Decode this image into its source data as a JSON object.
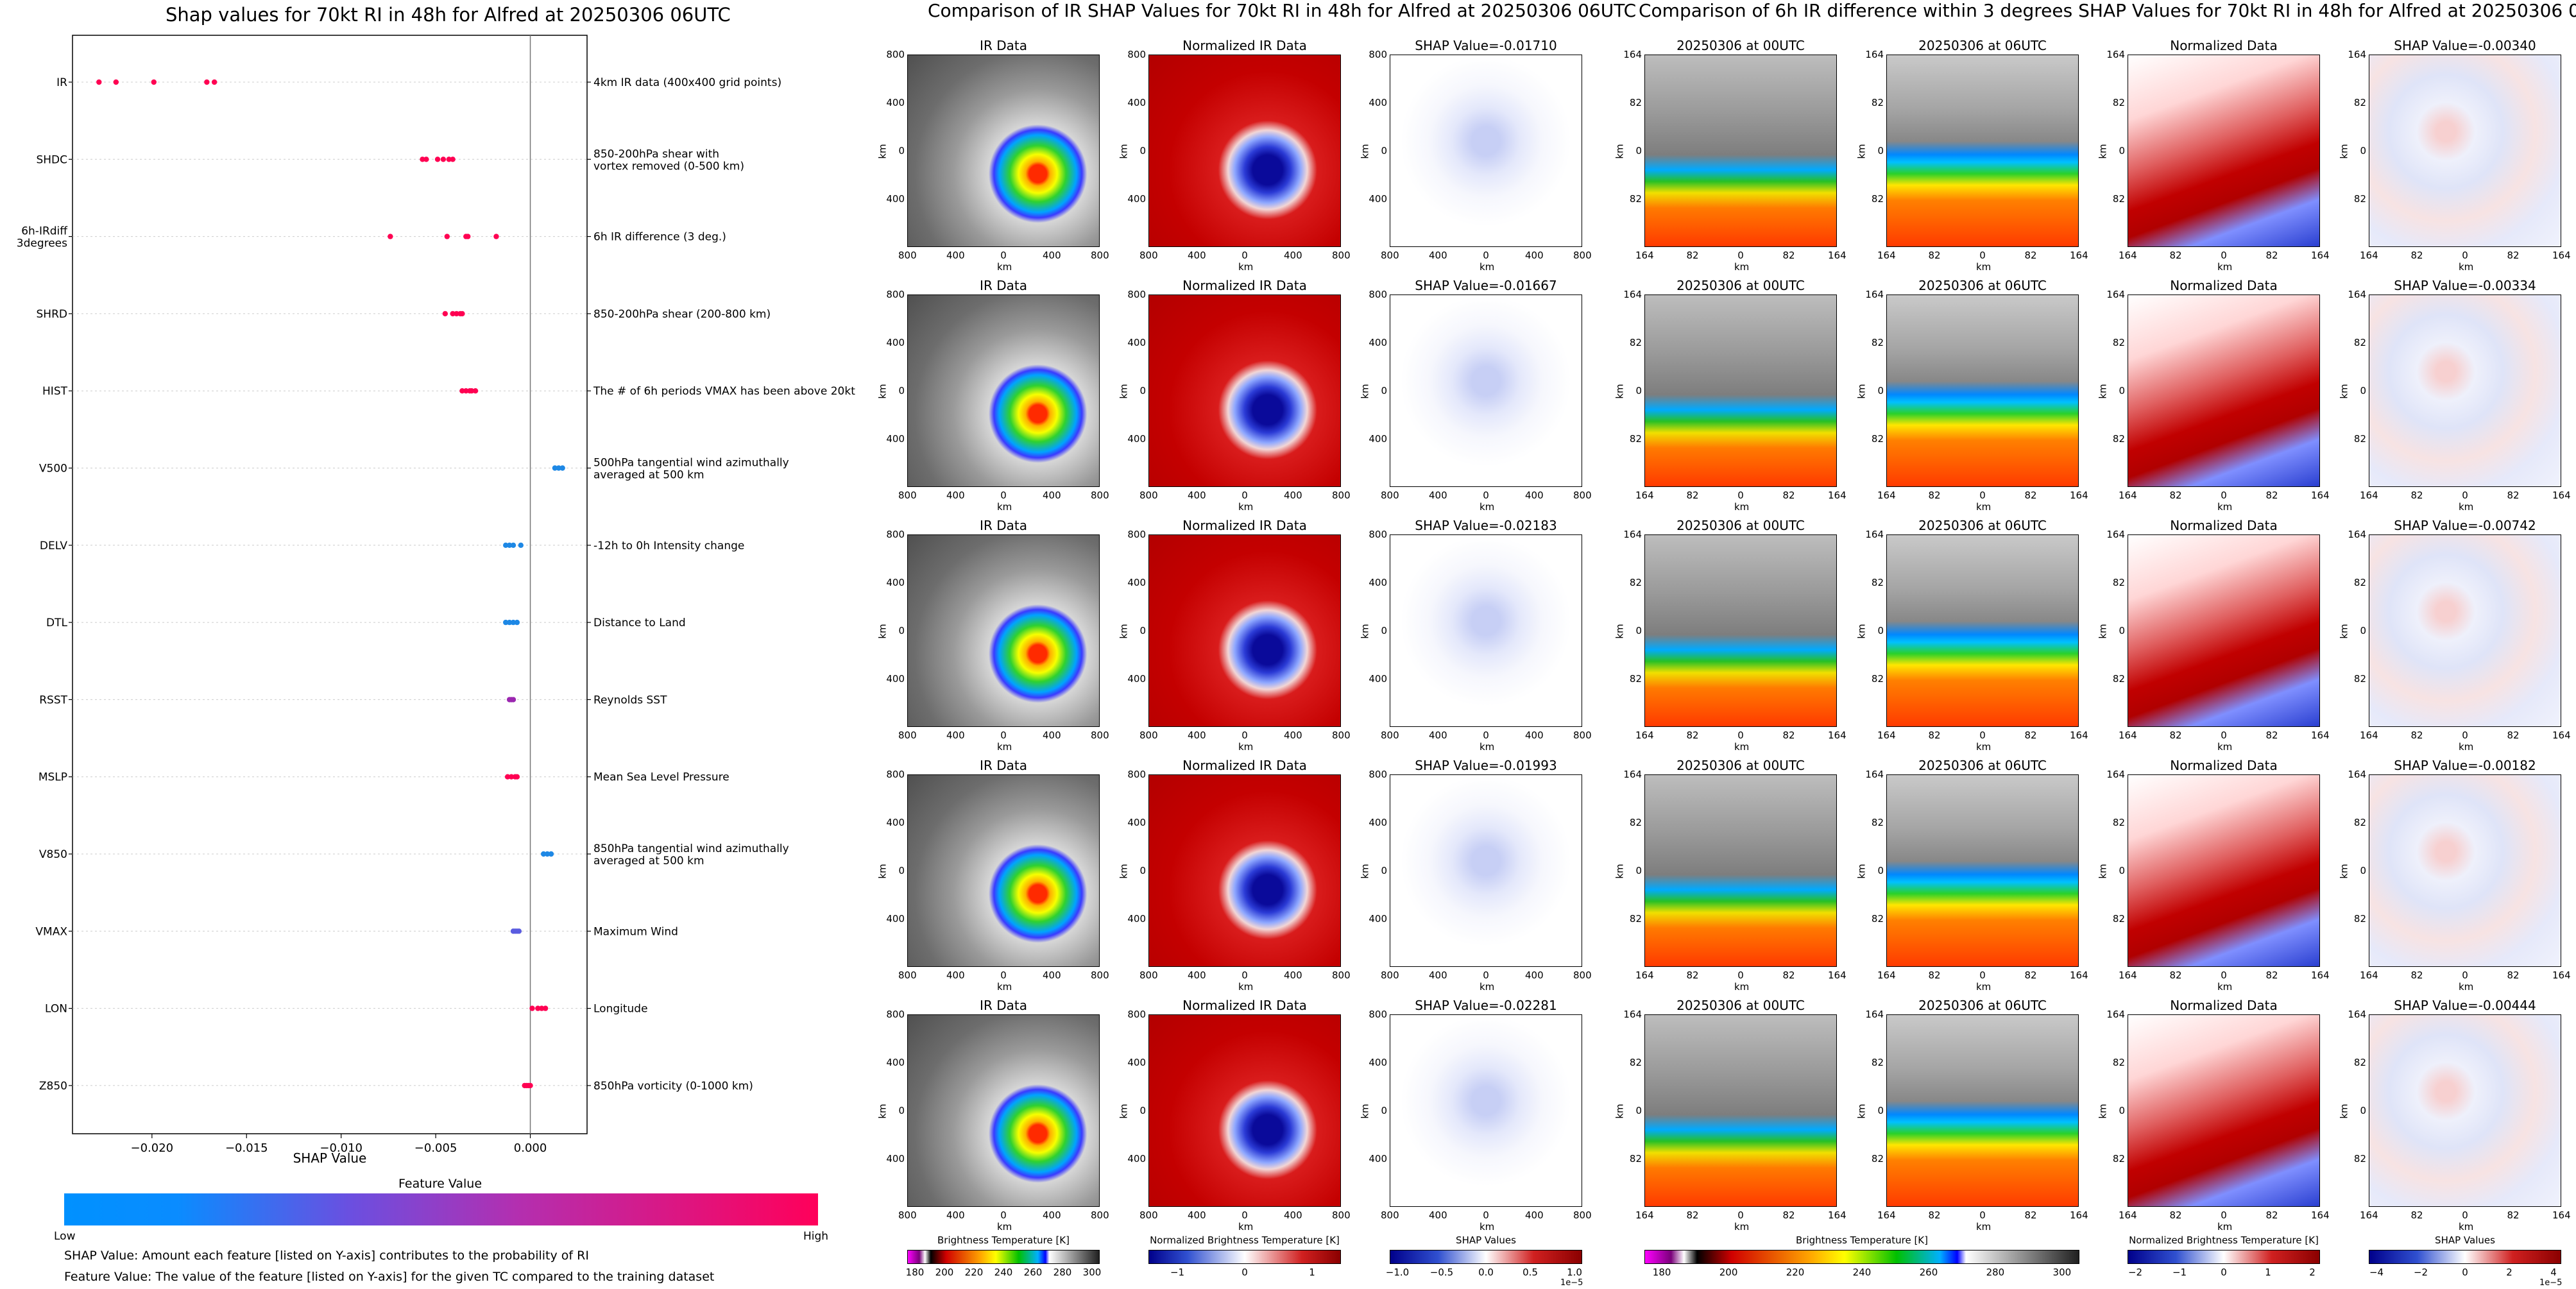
{
  "left_title": "Shap values for 70kt RI in 48h for Alfred at 20250306 06UTC",
  "mid_title": "Comparison of IR SHAP Values for 70kt RI in 48h for Alfred at 20250306 06UTC",
  "right_title": "Comparison of 6h IR difference within 3 degrees SHAP Values for 70kt RI in 48h for Alfred at 20250306 06UTC",
  "colorbar_title": "Feature Value",
  "colorbar_low": "Low",
  "colorbar_high": "High",
  "notes": [
    "SHAP Value: Amount each feature [listed on Y-axis] contributes to the probability of RI",
    "Feature Value: The value of the feature [listed on Y-axis] for the given TC compared to the training dataset"
  ],
  "colors": {
    "low": "#1e88e5",
    "high": "#ff0052",
    "pos": "#b2182b",
    "neg": "#2166ac"
  },
  "panel_titles": {
    "ir": "IR Data",
    "norm_ir": "Normalized IR Data",
    "t0": "20250306 at 00UTC",
    "t6": "20250306 at 06UTC",
    "norm": "Normalized Data"
  },
  "axis_km": "km",
  "ir_ticks_x": [
    "800",
    "400",
    "0",
    "400",
    "800"
  ],
  "ir_ticks_y": [
    "800",
    "400",
    "0",
    "400",
    "800"
  ],
  "diff_ticks": [
    "164",
    "82",
    "0",
    "82",
    "164"
  ],
  "shap_ir_values": [
    "SHAP Value=-0.01710",
    "SHAP Value=-0.01667",
    "SHAP Value=-0.02183",
    "SHAP Value=-0.01993",
    "SHAP Value=-0.02281"
  ],
  "shap_diff_values": [
    "SHAP Value=-0.00340",
    "SHAP Value=-0.00334",
    "SHAP Value=-0.00742",
    "SHAP Value=-0.00182",
    "SHAP Value=-0.00444"
  ],
  "colorbars": [
    {
      "label": "Brightness Temperature [K]",
      "ticks": [
        "180",
        "200",
        "220",
        "240",
        "260",
        "280",
        "300"
      ]
    },
    {
      "label": "Normalized Brightness Temperature [K]",
      "ticks": [
        "−1",
        "0",
        "1"
      ]
    },
    {
      "label": "SHAP Values",
      "ticks": [
        "−1.0",
        "−0.5",
        "0.0",
        "0.5",
        "1.0"
      ],
      "offset": "1e−5"
    },
    {
      "label": "Brightness Temperature [K]",
      "ticks": [
        "180",
        "200",
        "220",
        "240",
        "260",
        "280",
        "300"
      ]
    },
    {
      "label": "Normalized Brightness Temperature [K]",
      "ticks": [
        "−2",
        "−1",
        "0",
        "1",
        "2"
      ]
    },
    {
      "label": "SHAP Values",
      "ticks": [
        "−4",
        "−2",
        "0",
        "2",
        "4"
      ],
      "offset": "1e−5"
    }
  ],
  "chart_data": {
    "type": "scatter",
    "title": "Shap values for 70kt RI in 48h for Alfred at 20250306 06UTC",
    "xlabel": "SHAP Value",
    "xlim": [
      -0.0242,
      0.003
    ],
    "xticks": [
      -0.02,
      -0.015,
      -0.01,
      -0.005,
      0.0
    ],
    "xtick_labels": [
      "−0.020",
      "−0.015",
      "−0.010",
      "−0.005",
      "0.000"
    ],
    "features": [
      {
        "name": "IR",
        "desc": "4km IR data (400x400 grid points)",
        "values": [
          -0.0228,
          -0.0219,
          -0.0199,
          -0.0171,
          -0.0167
        ],
        "colors": [
          "#ff0052",
          "#ff0052",
          "#ff0052",
          "#ff0052",
          "#ff0052"
        ]
      },
      {
        "name": "SHDC",
        "desc": "850-200hPa shear with\nvortex removed (0-500 km)",
        "values": [
          -0.0057,
          -0.0055,
          -0.0049,
          -0.0046,
          -0.0043,
          -0.0041
        ],
        "colors": [
          "#ff0052",
          "#ff0052",
          "#ff0052",
          "#ff0052",
          "#ff0052",
          "#ff0052"
        ]
      },
      {
        "name": "6h-IRdiff\n3degrees",
        "desc": "6h IR difference (3 deg.)",
        "values": [
          -0.0074,
          -0.0044,
          -0.0034,
          -0.0033,
          -0.0018
        ],
        "colors": [
          "#ff0052",
          "#ff0052",
          "#ff0052",
          "#ff0052",
          "#ff0052"
        ]
      },
      {
        "name": "SHRD",
        "desc": "850-200hPa shear (200-800 km)",
        "values": [
          -0.0045,
          -0.0041,
          -0.0039,
          -0.0037,
          -0.0036
        ],
        "colors": [
          "#ff0052",
          "#ff0052",
          "#ff0052",
          "#ff0052",
          "#ff0052"
        ]
      },
      {
        "name": "HIST",
        "desc": "The # of 6h periods VMAX has been above 20kt",
        "values": [
          -0.0036,
          -0.0034,
          -0.0032,
          -0.0031,
          -0.0029
        ],
        "colors": [
          "#ff0052",
          "#ff0052",
          "#ff0052",
          "#ff0052",
          "#ff0052"
        ]
      },
      {
        "name": "V500",
        "desc": "500hPa tangential wind azimuthally\naveraged at 500 km",
        "values": [
          0.0013,
          0.0015,
          0.0017
        ],
        "colors": [
          "#1e88e5",
          "#1e88e5",
          "#1e88e5"
        ]
      },
      {
        "name": "DELV",
        "desc": "-12h to 0h Intensity change",
        "values": [
          -0.0013,
          -0.0011,
          -0.0009,
          -0.0005
        ],
        "colors": [
          "#1e88e5",
          "#1e88e5",
          "#1e88e5",
          "#1e88e5"
        ]
      },
      {
        "name": "DTL",
        "desc": "Distance to Land",
        "values": [
          -0.0013,
          -0.0011,
          -0.0009,
          -0.0007
        ],
        "colors": [
          "#1e88e5",
          "#1e88e5",
          "#1e88e5",
          "#1e88e5"
        ]
      },
      {
        "name": "RSST",
        "desc": "Reynolds SST",
        "values": [
          -0.0011,
          -0.001,
          -0.0009
        ],
        "colors": [
          "#9b27b0",
          "#9b27b0",
          "#9b27b0"
        ]
      },
      {
        "name": "MSLP",
        "desc": "Mean Sea Level Pressure",
        "values": [
          -0.0012,
          -0.001,
          -0.0008,
          -0.0007
        ],
        "colors": [
          "#ff0052",
          "#ff0052",
          "#ff0052",
          "#ff0052"
        ]
      },
      {
        "name": "V850",
        "desc": "850hPa tangential wind azimuthally\naveraged at 500 km",
        "values": [
          0.0007,
          0.0009,
          0.0011
        ],
        "colors": [
          "#1e88e5",
          "#1e88e5",
          "#1e88e5"
        ]
      },
      {
        "name": "VMAX",
        "desc": "Maximum Wind",
        "values": [
          -0.0009,
          -0.0008,
          -0.0007,
          -0.0006
        ],
        "colors": [
          "#5a5ce0",
          "#5a5ce0",
          "#5a5ce0",
          "#5a5ce0"
        ]
      },
      {
        "name": "LON",
        "desc": "Longitude",
        "values": [
          0.0001,
          0.0004,
          0.0006,
          0.0008
        ],
        "colors": [
          "#ff0052",
          "#ff0052",
          "#ff0052",
          "#ff0052"
        ]
      },
      {
        "name": "Z850",
        "desc": "850hPa vorticity (0-1000 km)",
        "values": [
          -0.0003,
          -0.0002,
          -0.0001,
          0.0
        ],
        "colors": [
          "#ff0052",
          "#ff0052",
          "#ff0052",
          "#ff0052"
        ]
      }
    ]
  }
}
